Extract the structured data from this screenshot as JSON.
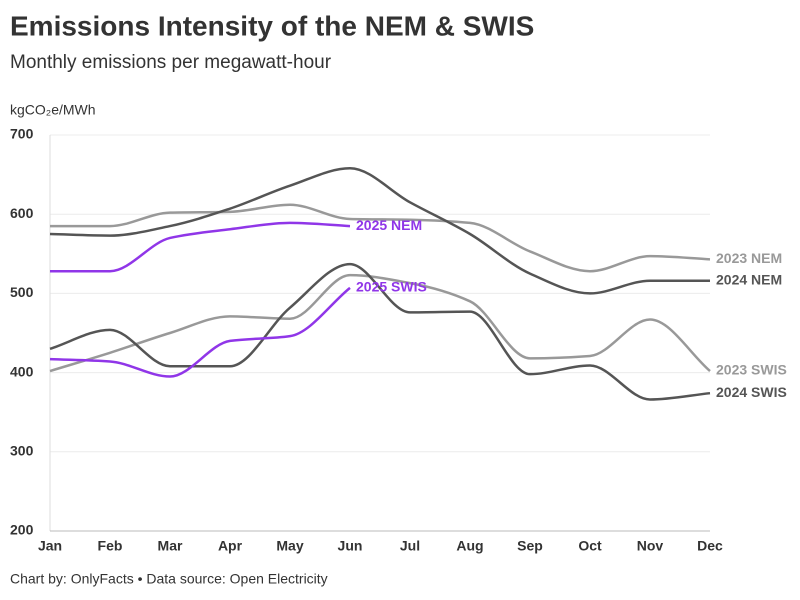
{
  "chart_data": {
    "type": "line",
    "title": "Emissions Intensity of the NEM & SWIS",
    "subtitle": "Monthly emissions per megawatt-hour",
    "y_label": "kgCO₂e/MWh",
    "footer": "Chart by: OnlyFacts • Data source: Open Electricity",
    "categories": [
      "Jan",
      "Feb",
      "Mar",
      "Apr",
      "May",
      "Jun",
      "Jul",
      "Aug",
      "Sep",
      "Oct",
      "Nov",
      "Dec"
    ],
    "ylim": [
      200,
      700
    ],
    "yticks": [
      200,
      300,
      400,
      500,
      600,
      700
    ],
    "grid": true,
    "series": [
      {
        "name": "2023 NEM",
        "color": "#999999",
        "values": [
          585,
          585,
          602,
          603,
          612,
          594,
          593,
          589,
          553,
          528,
          547,
          543
        ]
      },
      {
        "name": "2024 NEM",
        "color": "#555555",
        "values": [
          575,
          573,
          585,
          607,
          636,
          658,
          615,
          575,
          525,
          500,
          516,
          516
        ]
      },
      {
        "name": "2025 NEM",
        "color": "#9036e8",
        "values": [
          528,
          528,
          570,
          581,
          589,
          585,
          null,
          null,
          null,
          null,
          null,
          null
        ]
      },
      {
        "name": "2023 SWIS",
        "color": "#999999",
        "values": [
          402,
          425,
          450,
          471,
          468,
          523,
          513,
          490,
          418,
          421,
          467,
          402
        ]
      },
      {
        "name": "2024 SWIS",
        "color": "#555555",
        "values": [
          430,
          454,
          408,
          408,
          482,
          537,
          476,
          477,
          398,
          409,
          366,
          374
        ]
      },
      {
        "name": "2025 SWIS",
        "color": "#9036e8",
        "values": [
          417,
          414,
          395,
          440,
          446,
          507,
          null,
          null,
          null,
          null,
          null,
          null
        ]
      }
    ]
  }
}
